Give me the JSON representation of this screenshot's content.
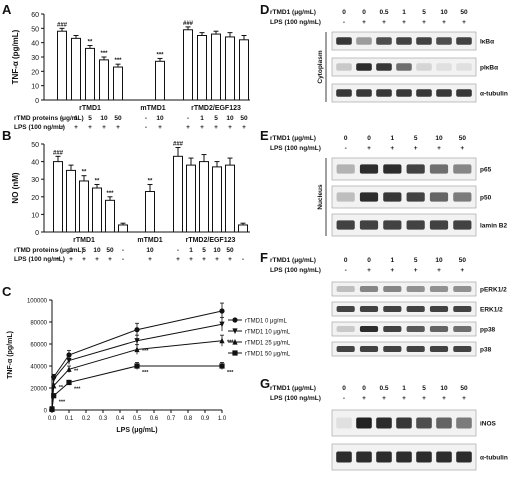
{
  "panels": {
    "A": {
      "letter": "A",
      "ylabel": "TNF-α (pg/mL)",
      "yticks": [
        "0",
        "10",
        "20",
        "30",
        "40",
        "50",
        "60"
      ],
      "row_labels": [
        "rTMD proteins (μg/mL)",
        "LPS (100 ng/mL)"
      ],
      "groups": [
        "rTMD1",
        "mTMD1",
        "rTMD2/EGF123"
      ],
      "dose_labels": [
        "-",
        "1",
        "5",
        "10",
        "50",
        "-",
        "10",
        "-",
        "1",
        "5",
        "10",
        "50"
      ],
      "lps_labels": [
        "+",
        "+",
        "+",
        "+",
        "+",
        "-",
        "+",
        "+",
        "+",
        "+",
        "+",
        "+"
      ],
      "chart_data": {
        "type": "bar",
        "ylabel": "TNF-α (pg/mL)",
        "ylim": [
          0,
          60
        ],
        "values": [
          48,
          43,
          36,
          28,
          23,
          0,
          27,
          49,
          45,
          46,
          44,
          42
        ],
        "errors": [
          2,
          2,
          2,
          2,
          2,
          0,
          2,
          2,
          2,
          2,
          3,
          3
        ],
        "sig": [
          "###",
          "",
          "**",
          "***",
          "***",
          "",
          "***",
          "###",
          "",
          "",
          "",
          ""
        ]
      }
    },
    "B": {
      "letter": "B",
      "ylabel": "NO (nM)",
      "yticks": [
        "0",
        "10",
        "20",
        "30",
        "40",
        "50"
      ],
      "row_labels": [
        "rTMD proteins (μg/mL)",
        "LPS (100 ng/mL)"
      ],
      "groups": [
        "rTMD1",
        "mTMD1",
        "rTMD2/EGF123"
      ],
      "dose_labels": [
        "-",
        "1",
        "5",
        "10",
        "50",
        "-",
        "10",
        "-",
        "1",
        "5",
        "10",
        "50",
        ""
      ],
      "lps_labels": [
        "+",
        "+",
        "+",
        "+",
        "+",
        "-",
        "+",
        "+",
        "+",
        "+",
        "+",
        "+",
        "-"
      ],
      "chart_data": {
        "type": "bar",
        "ylabel": "NO (nM)",
        "ylim": [
          0,
          50
        ],
        "values": [
          40,
          35,
          29,
          25,
          18,
          4,
          23,
          43,
          38,
          40,
          37,
          38,
          4
        ],
        "errors": [
          3,
          3,
          3,
          2,
          2,
          1,
          4,
          5,
          4,
          4,
          3,
          4,
          1
        ],
        "sig": [
          "###",
          "",
          "**",
          "**",
          "***",
          "",
          "**",
          "###",
          "",
          "",
          "",
          "",
          ""
        ]
      }
    },
    "C": {
      "letter": "C",
      "ylabel": "TNF-α (pg/mL)",
      "xlabel": "LPS (μg/mL)",
      "yticks": [
        "0",
        "20000",
        "40000",
        "60000",
        "80000",
        "100000"
      ],
      "xticks": [
        "0.0",
        "0.1",
        "0.2",
        "0.3",
        "0.4",
        "0.5",
        "0.6",
        "0.7",
        "0.8",
        "0.9",
        "1.0"
      ],
      "chart_data": {
        "type": "line",
        "x": [
          0,
          0.01,
          0.1,
          0.5,
          1.0
        ],
        "ylim": [
          0,
          100000
        ],
        "xlim": [
          0,
          1.0
        ],
        "series": [
          {
            "name": "rTMD1 0 μg/mL",
            "marker": "circle",
            "values": [
              1000,
              30000,
              50000,
              73000,
              90000
            ],
            "sig": [
              "",
              "",
              "",
              "",
              ""
            ]
          },
          {
            "name": "rTMD1 10 μg/mL",
            "marker": "triangle-down",
            "values": [
              1000,
              28000,
              45000,
              63000,
              78000
            ],
            "sig": [
              "",
              "",
              "",
              "",
              ""
            ]
          },
          {
            "name": "rTMD1 25 μg/mL",
            "marker": "triangle",
            "values": [
              800,
              22000,
              37000,
              55000,
              63000
            ],
            "sig": [
              "",
              "**",
              "**",
              "***",
              "***"
            ]
          },
          {
            "name": "rTMD1 50 μg/mL",
            "marker": "square",
            "values": [
              500,
              13000,
              25000,
              40000,
              40000
            ],
            "sig": [
              "",
              "***",
              "***",
              "***",
              "***"
            ]
          }
        ]
      }
    },
    "D": {
      "letter": "D",
      "dose_label": "rTMD1 (μg/mL)",
      "lps_label": "LPS (100 ng/mL)",
      "doses": [
        "0",
        "0",
        "0.5",
        "1",
        "5",
        "10",
        "50"
      ],
      "lps": [
        "-",
        "+",
        "+",
        "+",
        "+",
        "+",
        "+"
      ],
      "side_label": "Cytoplasm",
      "rows": [
        {
          "label": "IκBα",
          "intensity": [
            0.8,
            0.35,
            0.7,
            0.75,
            0.75,
            0.7,
            0.75
          ]
        },
        {
          "label": "pIκBα",
          "intensity": [
            0.15,
            0.85,
            0.8,
            0.55,
            0.1,
            0.05,
            0.05
          ]
        },
        {
          "label": "α-tubulin",
          "intensity": [
            0.8,
            0.8,
            0.8,
            0.8,
            0.8,
            0.8,
            0.8
          ]
        }
      ]
    },
    "E": {
      "letter": "E",
      "dose_label": "rTMD1 (μg/mL)",
      "lps_label": "LPS (100 ng/mL)",
      "doses": [
        "0",
        "0",
        "1",
        "5",
        "10",
        "50"
      ],
      "lps": [
        "-",
        "+",
        "+",
        "+",
        "+",
        "+"
      ],
      "side_label": "Nucleus",
      "rows": [
        {
          "label": "p65",
          "intensity": [
            0.25,
            0.85,
            0.85,
            0.75,
            0.55,
            0.45
          ]
        },
        {
          "label": "p50",
          "intensity": [
            0.2,
            0.85,
            0.8,
            0.75,
            0.6,
            0.5
          ]
        },
        {
          "label": "lamin B2",
          "intensity": [
            0.75,
            0.75,
            0.75,
            0.75,
            0.75,
            0.75
          ]
        }
      ]
    },
    "F": {
      "letter": "F",
      "dose_label": "rTMD1 (μg/mL)",
      "lps_label": "LPS (100 ng/mL)",
      "doses": [
        "0",
        "0",
        "1",
        "5",
        "10",
        "50"
      ],
      "lps": [
        "-",
        "+",
        "+",
        "+",
        "+",
        "+"
      ],
      "rows": [
        {
          "label": "pERK1/2",
          "intensity": [
            0.2,
            0.45,
            0.45,
            0.4,
            0.4,
            0.4
          ]
        },
        {
          "label": "ERK1/2",
          "intensity": [
            0.75,
            0.75,
            0.75,
            0.75,
            0.75,
            0.75
          ]
        },
        {
          "label": "pp38",
          "intensity": [
            0.15,
            0.85,
            0.75,
            0.65,
            0.6,
            0.55
          ]
        },
        {
          "label": "p38",
          "intensity": [
            0.75,
            0.75,
            0.75,
            0.75,
            0.75,
            0.75
          ]
        }
      ]
    },
    "G": {
      "letter": "G",
      "dose_label": "rTMD1 (μg/mL)",
      "lps_label": "LPS (100 ng/mL)",
      "doses": [
        "0",
        "0",
        "0.5",
        "1",
        "5",
        "10",
        "50"
      ],
      "lps": [
        "-",
        "+",
        "+",
        "+",
        "+",
        "+",
        "+"
      ],
      "rows": [
        {
          "label": "iNOS",
          "intensity": [
            0.05,
            0.9,
            0.85,
            0.8,
            0.7,
            0.6,
            0.5
          ]
        },
        {
          "label": "α-tubulin",
          "intensity": [
            0.85,
            0.85,
            0.85,
            0.85,
            0.85,
            0.85,
            0.85
          ]
        }
      ]
    }
  }
}
